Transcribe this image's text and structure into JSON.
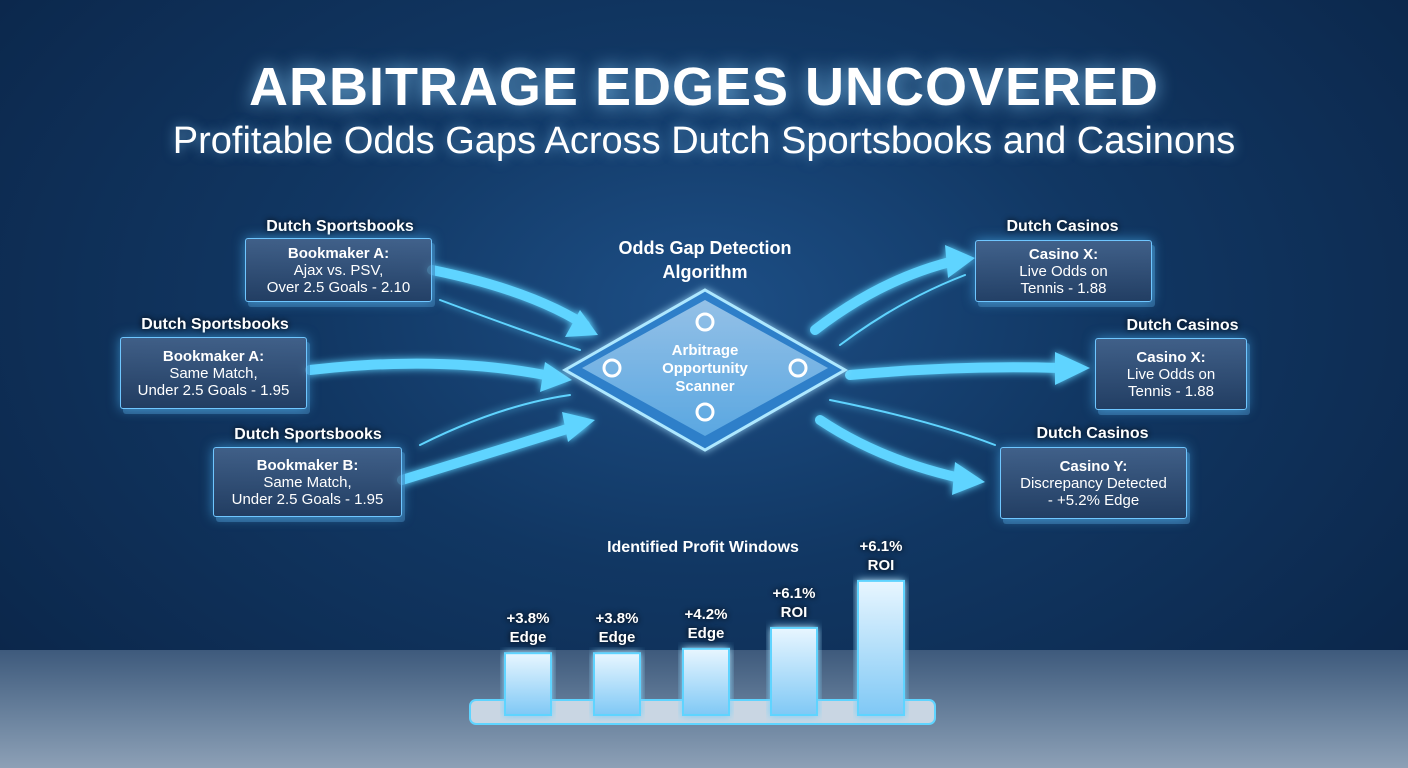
{
  "header": {
    "title": "ARBITRAGE EDGES UNCOVERED",
    "subtitle": "Profitable Odds Gaps Across Dutch Sportsbooks and Casinons"
  },
  "left_sources": [
    {
      "group": "Dutch Sportsbooks",
      "name": "Bookmaker A:",
      "line1": "Ajax vs. PSV,",
      "line2": "Over 2.5 Goals - 2.10"
    },
    {
      "group": "Dutch Sportsbooks",
      "name": "Bookmaker A:",
      "line1": "Same Match,",
      "line2": "Under 2.5 Goals - 1.95"
    },
    {
      "group": "Dutch Sportsbooks",
      "name": "Bookmaker B:",
      "line1": "Same Match,",
      "line2": "Under 2.5 Goals - 1.95"
    }
  ],
  "right_sources": [
    {
      "group": "Dutch Casinos",
      "name": "Casino X:",
      "line1": "Live Odds on",
      "line2": "Tennis - 1.88"
    },
    {
      "group": "Dutch Casinos",
      "name": "Casino X:",
      "line1": "Live Odds on",
      "line2": "Tennis - 1.88"
    },
    {
      "group": "Dutch Casinos",
      "name": "Casino Y:",
      "line1": "Discrepancy Detected",
      "line2": "- +5.2% Edge"
    }
  ],
  "center": {
    "title_line1": "Odds Gap Detection",
    "title_line2": "Algorithm",
    "scanner_line1": "Arbitrage",
    "scanner_line2": "Opportunity",
    "scanner_line3": "Scanner"
  },
  "colors": {
    "accent": "#4fd0ff",
    "background": "#113763"
  },
  "chart_data": {
    "type": "bar",
    "title": "Identified Profit Windows",
    "categories": [
      "+3.8% Edge",
      "+3.8% Edge",
      "+4.2% Edge",
      "+6.1% ROI",
      "+6.1% ROI"
    ],
    "labels": [
      [
        "+3.8%",
        "Edge"
      ],
      [
        "+3.8%",
        "Edge"
      ],
      [
        "+4.2%",
        "Edge"
      ],
      [
        "+6.1%",
        "ROI"
      ],
      [
        "+6.1%",
        "ROI"
      ]
    ],
    "values": [
      3.8,
      3.8,
      4.2,
      6.1,
      6.1
    ]
  }
}
